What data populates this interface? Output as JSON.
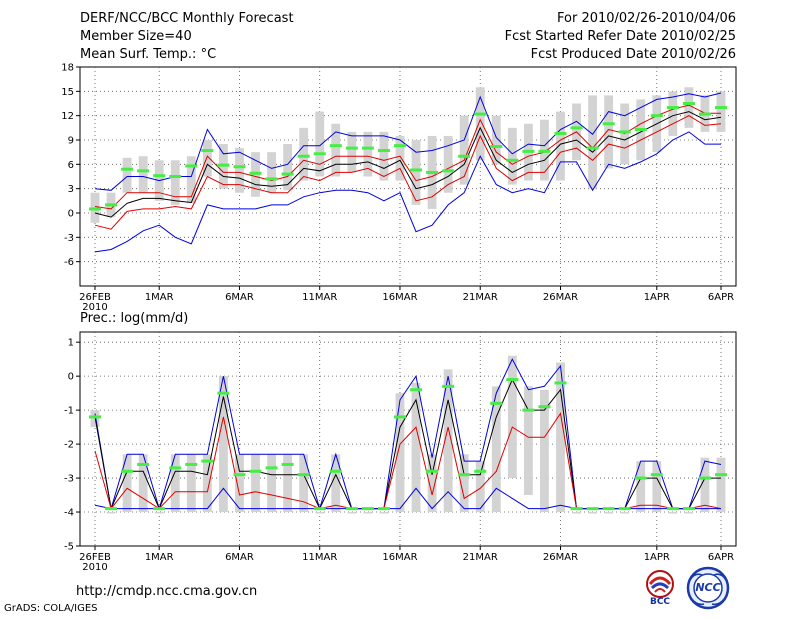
{
  "header": {
    "title": "DERF/NCC/BCC Monthly Forecast",
    "member_size": "Member Size=40",
    "variable": "Mean Surf. Temp.: °C",
    "period": "For 2010/02/26-2010/04/06",
    "started": "Fcst Started Refer Date 2010/02/25",
    "produced": "Fcst Produced Date 2010/02/26"
  },
  "footer": {
    "url": "http://cmdp.ncc.cma.gov.cn",
    "grads": "GrADS: COLA/IGES",
    "logo_bcc": "BCC",
    "logo_ncc": "NCC"
  },
  "colors": {
    "bar": "#d3d3d3",
    "median": "#000000",
    "lower": "#e00000",
    "envelope": "#0000e0",
    "ensemble_mark": "#44ee44"
  },
  "chart_data": [
    {
      "type": "line",
      "title": "Mean Surf. Temp.: °C",
      "xlabel": "",
      "ylabel": "",
      "xlim": [
        0,
        39
      ],
      "ylim": [
        -9,
        18
      ],
      "yticks": [
        -6,
        -3,
        0,
        3,
        6,
        9,
        12,
        15,
        18
      ],
      "xticks": [
        {
          "x": 0,
          "label": "26FEB",
          "sublabel": "2010"
        },
        {
          "x": 4,
          "label": "1MAR"
        },
        {
          "x": 9,
          "label": "6MAR"
        },
        {
          "x": 14,
          "label": "11MAR"
        },
        {
          "x": 19,
          "label": "16MAR"
        },
        {
          "x": 24,
          "label": "21MAR"
        },
        {
          "x": 29,
          "label": "26MAR"
        },
        {
          "x": 35,
          "label": "1APR"
        },
        {
          "x": 39,
          "label": "6APR"
        }
      ],
      "bar_low": [
        -1.2,
        -0.5,
        2.5,
        2.5,
        1.5,
        1.0,
        1.2,
        4.5,
        3.0,
        2.5,
        2.0,
        2.5,
        2.8,
        4.0,
        4.5,
        4.5,
        5.0,
        4.5,
        4.0,
        4.0,
        1.0,
        0.5,
        2.5,
        3.5,
        6.5,
        6.0,
        3.5,
        4.0,
        4.0,
        4.0,
        6.5,
        3.0,
        5.5,
        6.0,
        6.5,
        7.5,
        9.5,
        10.5,
        10.0,
        10.0
      ],
      "bar_high": [
        2.5,
        2.5,
        6.8,
        7.0,
        6.5,
        6.5,
        7.0,
        9.0,
        8.5,
        8.0,
        7.5,
        7.5,
        8.5,
        10.5,
        12.5,
        11.0,
        10.0,
        10.0,
        10.0,
        9.5,
        9.0,
        9.5,
        9.5,
        12.0,
        15.5,
        12.0,
        10.5,
        11.0,
        11.5,
        12.5,
        13.5,
        14.5,
        14.5,
        13.5,
        14.0,
        14.5,
        15.0,
        15.5,
        14.5,
        15.0
      ],
      "series": [
        {
          "name": "upper envelope",
          "color": "#0000e0",
          "values": [
            3.0,
            2.8,
            4.5,
            4.5,
            4.0,
            4.5,
            4.5,
            10.3,
            7.3,
            7.5,
            6.5,
            5.5,
            6.0,
            8.3,
            8.3,
            10.0,
            9.5,
            9.5,
            9.5,
            9.0,
            7.5,
            7.7,
            8.3,
            9.0,
            14.3,
            9.3,
            7.3,
            8.5,
            8.3,
            10.3,
            11.3,
            9.7,
            12.5,
            12.0,
            13.0,
            14.0,
            14.3,
            14.7,
            14.3,
            14.8
          ]
        },
        {
          "name": "ensemble upper",
          "color": "#e00000",
          "values": [
            0.8,
            0.5,
            2.5,
            2.5,
            2.5,
            2.0,
            2.0,
            7.0,
            5.0,
            5.0,
            4.5,
            4.0,
            4.5,
            6.5,
            6.0,
            7.0,
            7.0,
            7.0,
            6.5,
            7.0,
            4.0,
            4.5,
            5.5,
            6.5,
            11.5,
            7.5,
            6.0,
            7.0,
            7.5,
            9.0,
            10.0,
            8.0,
            10.3,
            9.8,
            11.0,
            12.0,
            12.8,
            13.3,
            12.3,
            12.3
          ]
        },
        {
          "name": "ensemble median",
          "color": "#000000",
          "values": [
            0.0,
            -0.5,
            1.2,
            1.8,
            1.8,
            1.5,
            1.3,
            6.0,
            4.5,
            4.3,
            3.5,
            3.3,
            3.5,
            5.5,
            5.2,
            6.0,
            6.0,
            6.3,
            5.5,
            6.5,
            3.0,
            3.5,
            4.5,
            6.0,
            10.5,
            6.5,
            5.0,
            6.0,
            6.5,
            8.5,
            9.0,
            7.5,
            9.5,
            9.0,
            10.0,
            11.0,
            12.0,
            12.5,
            11.5,
            11.8
          ]
        },
        {
          "name": "ensemble lower",
          "color": "#e00000",
          "values": [
            -1.5,
            -2.0,
            0.2,
            0.5,
            0.5,
            0.8,
            0.5,
            4.5,
            3.5,
            3.5,
            3.0,
            2.5,
            2.5,
            4.5,
            4.0,
            5.0,
            5.0,
            5.5,
            4.5,
            5.5,
            1.5,
            2.0,
            3.5,
            4.5,
            9.5,
            5.5,
            4.0,
            5.0,
            5.0,
            7.5,
            8.0,
            6.5,
            8.5,
            8.0,
            9.0,
            10.0,
            11.0,
            12.0,
            10.8,
            11.0
          ]
        },
        {
          "name": "lower envelope",
          "color": "#0000e0",
          "values": [
            -4.8,
            -4.5,
            -3.5,
            -2.2,
            -1.5,
            -3.0,
            -3.8,
            1.0,
            0.5,
            0.5,
            0.5,
            1.0,
            1.0,
            2.0,
            2.5,
            2.8,
            2.8,
            2.5,
            1.5,
            2.5,
            -2.3,
            -1.5,
            1.0,
            2.5,
            7.0,
            3.5,
            2.5,
            3.0,
            2.5,
            6.3,
            6.3,
            2.8,
            6.0,
            5.5,
            6.3,
            7.3,
            9.0,
            10.0,
            8.5,
            8.5
          ]
        },
        {
          "name": "ensemble mean marks",
          "color": "#44ee44",
          "style": "dash",
          "values": [
            0.5,
            1.0,
            5.4,
            5.2,
            4.6,
            4.5,
            5.8,
            7.7,
            5.9,
            5.7,
            4.9,
            4.2,
            4.8,
            7.0,
            7.3,
            8.3,
            8.0,
            8.0,
            7.7,
            8.3,
            5.3,
            5.0,
            5.2,
            7.0,
            12.2,
            8.2,
            6.5,
            7.6,
            7.6,
            9.8,
            10.5,
            8.0,
            11.0,
            10.0,
            10.3,
            12.0,
            13.0,
            13.5,
            12.2,
            13.0
          ]
        }
      ]
    },
    {
      "type": "line",
      "title": "Prec.: log(mm/d)",
      "xlabel": "",
      "ylabel": "",
      "xlim": [
        0,
        39
      ],
      "ylim": [
        -5,
        1.3
      ],
      "yticks": [
        -5,
        -4,
        -3,
        -2,
        -1,
        0,
        1
      ],
      "xticks": [
        {
          "x": 0,
          "label": "26FEB",
          "sublabel": "2010"
        },
        {
          "x": 4,
          "label": "1MAR"
        },
        {
          "x": 9,
          "label": "6MAR"
        },
        {
          "x": 14,
          "label": "11MAR"
        },
        {
          "x": 19,
          "label": "16MAR"
        },
        {
          "x": 24,
          "label": "21MAR"
        },
        {
          "x": 29,
          "label": "26MAR"
        },
        {
          "x": 35,
          "label": "1APR"
        },
        {
          "x": 39,
          "label": "6APR"
        }
      ],
      "bar_low": [
        -1.5,
        -4.0,
        -4.0,
        -4.0,
        -4.0,
        -4.0,
        -4.0,
        -4.0,
        -4.0,
        -4.0,
        -4.0,
        -4.0,
        -4.0,
        -4.0,
        -4.0,
        -4.0,
        -4.0,
        -4.0,
        -4.0,
        -4.0,
        -4.0,
        -4.0,
        -4.0,
        -4.0,
        -4.0,
        -4.0,
        -3.0,
        -3.5,
        -4.0,
        -4.0,
        -4.0,
        -4.0,
        -4.0,
        -4.0,
        -4.0,
        -4.0,
        -4.0,
        -4.0,
        -4.0,
        -4.0
      ],
      "bar_high": [
        -1.0,
        -4.0,
        -2.3,
        -2.3,
        -4.0,
        -2.3,
        -2.3,
        -2.3,
        0.0,
        -2.3,
        -2.3,
        -2.3,
        -2.3,
        -2.3,
        -4.0,
        -2.3,
        -4.0,
        -4.0,
        -4.0,
        -0.5,
        -0.2,
        -2.3,
        0.2,
        -2.3,
        -2.5,
        -0.3,
        0.6,
        -0.3,
        -0.4,
        0.4,
        -4.0,
        -4.0,
        -4.0,
        -4.0,
        -2.5,
        -2.5,
        -4.0,
        -4.0,
        -2.4,
        -2.4
      ],
      "series": [
        {
          "name": "upper envelope",
          "color": "#0000e0",
          "values": [
            -1.1,
            -3.9,
            -2.3,
            -2.3,
            -3.9,
            -2.3,
            -2.3,
            -2.3,
            0.0,
            -2.3,
            -2.3,
            -2.3,
            -2.3,
            -2.3,
            -3.9,
            -2.3,
            -3.9,
            -3.9,
            -3.9,
            -0.7,
            0.0,
            -2.4,
            0.0,
            -2.5,
            -2.5,
            -0.5,
            0.5,
            -0.4,
            -0.3,
            0.3,
            -3.9,
            -3.9,
            -3.9,
            -3.9,
            -2.5,
            -2.5,
            -3.9,
            -3.9,
            -2.5,
            -2.6
          ]
        },
        {
          "name": "ensemble median",
          "color": "#000000",
          "values": [
            -1.2,
            -3.9,
            -2.8,
            -2.8,
            -3.9,
            -2.8,
            -2.8,
            -2.9,
            -0.6,
            -2.8,
            -2.8,
            -2.9,
            -2.9,
            -2.9,
            -3.9,
            -2.9,
            -3.9,
            -3.9,
            -3.9,
            -1.5,
            -0.7,
            -2.9,
            -0.7,
            -2.9,
            -2.9,
            -1.2,
            -0.1,
            -1.0,
            -1.0,
            -0.4,
            -3.9,
            -3.9,
            -3.9,
            -3.9,
            -3.0,
            -3.0,
            -3.9,
            -3.9,
            -3.0,
            -3.0
          ]
        },
        {
          "name": "ensemble lower",
          "color": "#e00000",
          "values": [
            -2.2,
            -3.9,
            -3.3,
            -3.6,
            -3.9,
            -3.4,
            -3.4,
            -3.4,
            -1.2,
            -3.5,
            -3.4,
            -3.5,
            -3.6,
            -3.7,
            -3.9,
            -3.8,
            -3.9,
            -3.9,
            -3.9,
            -2.0,
            -1.5,
            -3.5,
            -1.5,
            -3.6,
            -3.3,
            -2.8,
            -1.5,
            -1.8,
            -1.8,
            -1.1,
            -3.9,
            -3.9,
            -3.9,
            -3.9,
            -3.8,
            -3.8,
            -3.9,
            -3.9,
            -3.8,
            -3.9
          ]
        },
        {
          "name": "lower envelope",
          "color": "#0000e0",
          "values": [
            -3.8,
            -3.9,
            -3.9,
            -3.9,
            -3.9,
            -3.9,
            -3.9,
            -3.9,
            -3.3,
            -3.9,
            -3.9,
            -3.9,
            -3.9,
            -3.9,
            -3.9,
            -3.9,
            -3.9,
            -3.9,
            -3.9,
            -3.9,
            -3.3,
            -3.9,
            -3.4,
            -3.9,
            -3.9,
            -3.3,
            -3.6,
            -3.9,
            -3.9,
            -3.8,
            -3.9,
            -3.9,
            -3.9,
            -3.9,
            -3.9,
            -3.9,
            -3.9,
            -3.9,
            -3.9,
            -3.9
          ]
        },
        {
          "name": "ensemble mean marks",
          "color": "#44ee44",
          "style": "dash",
          "values": [
            -1.2,
            -3.9,
            -2.8,
            -2.6,
            -3.9,
            -2.7,
            -2.6,
            -2.5,
            -0.5,
            -2.9,
            -2.8,
            -2.7,
            -2.6,
            -2.9,
            -3.9,
            -2.8,
            -3.9,
            -3.9,
            -3.9,
            -1.2,
            -0.4,
            -2.8,
            -0.3,
            -2.9,
            -2.8,
            -0.8,
            -0.1,
            -1.0,
            -0.9,
            -0.2,
            -3.9,
            -3.9,
            -3.9,
            -3.9,
            -3.0,
            -2.9,
            -3.9,
            -3.9,
            -3.0,
            -2.9
          ]
        }
      ]
    }
  ]
}
